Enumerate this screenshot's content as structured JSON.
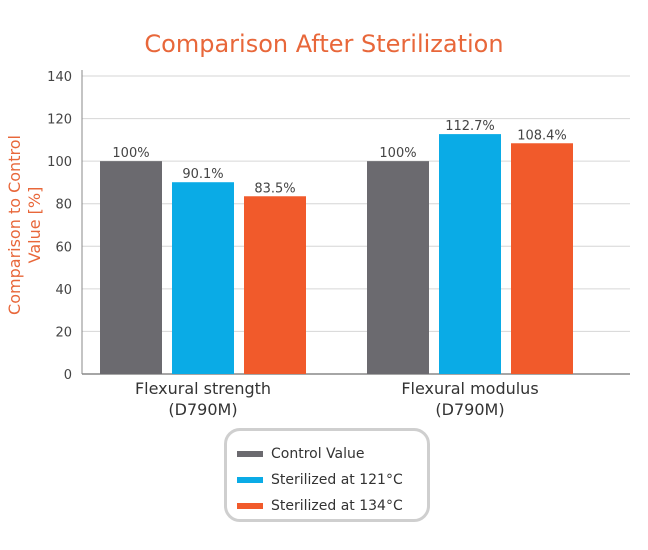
{
  "chart_data": {
    "type": "bar",
    "title": "Comparison After Sterilization",
    "ylabel": "Comparison to Control Value [%]",
    "ylim": [
      0,
      140
    ],
    "yticks": [
      0,
      20,
      40,
      60,
      80,
      100,
      120,
      140
    ],
    "grid": true,
    "legend_position": "bottom-center",
    "categories": [
      "Flexural strength\n(D790M)",
      "Flexural modulus\n(D790M)"
    ],
    "series": [
      {
        "name": "Control Value",
        "color": "#6b6a6f",
        "values": [
          100,
          100
        ],
        "labels": [
          "100%",
          "100%"
        ]
      },
      {
        "name": "Sterilized at 121°C",
        "color": "#0aabe6",
        "values": [
          90.1,
          112.7
        ],
        "labels": [
          "90.1%",
          "112.7%"
        ]
      },
      {
        "name": "Sterilized at 134°C",
        "color": "#f15a2b",
        "values": [
          83.5,
          108.4
        ],
        "labels": [
          "83.5%",
          "108.4%"
        ]
      }
    ]
  }
}
